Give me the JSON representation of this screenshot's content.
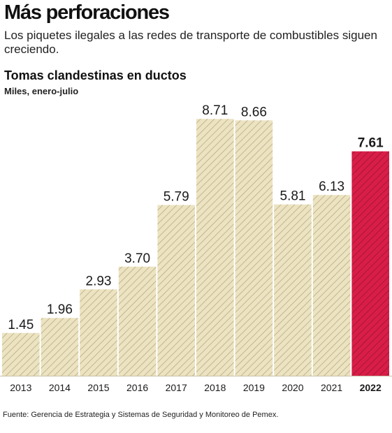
{
  "header": {
    "headline": "Más perforaciones",
    "dek": "Los piquetes ilegales a las redes de transporte de combustibles siguen creciendo."
  },
  "chart_data": {
    "type": "bar",
    "title": "Tomas clandestinas en ductos",
    "subtitle": "Miles, enero-julio",
    "categories": [
      "2013",
      "2014",
      "2015",
      "2016",
      "2017",
      "2018",
      "2019",
      "2020",
      "2021",
      "2022"
    ],
    "values": [
      1.45,
      1.96,
      2.93,
      3.7,
      5.79,
      8.71,
      8.66,
      5.81,
      6.13,
      7.61
    ],
    "value_labels": [
      "1.45",
      "1.96",
      "2.93",
      "3.70",
      "5.79",
      "8.71",
      "8.66",
      "5.81",
      "6.13",
      "7.61"
    ],
    "highlight_index": 9,
    "ylim": [
      0,
      9
    ],
    "grid": false,
    "colors": {
      "bar_fill": "#ece3c2",
      "bar_hatch": "#b9ab7e",
      "highlight_fill": "#d81e48",
      "highlight_hatch": "#a01234"
    }
  },
  "footer": {
    "source": "Fuente: Gerencia de Estrategia y Sistemas de Seguridad y Monitoreo de Pemex."
  }
}
